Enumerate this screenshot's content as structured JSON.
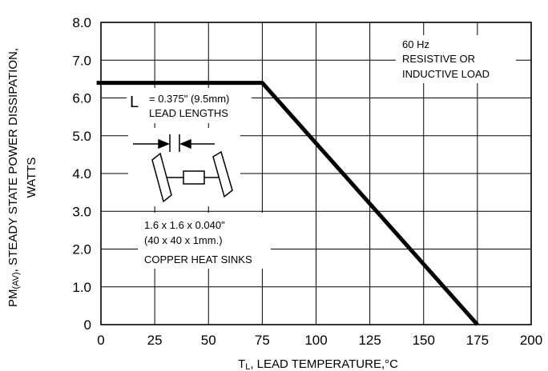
{
  "chart_data": {
    "type": "line",
    "title": "",
    "xlabel": {
      "main": "T",
      "sub": "L",
      "rest": ", LEAD TEMPERATURE,°C"
    },
    "ylabel": {
      "line1_main": "PM",
      "line1_sub": "(AV)",
      "line1_rest": ", STEADY STATE POWER DISSIPATION,",
      "line2": "WATTS"
    },
    "xlim": [
      0,
      200
    ],
    "ylim": [
      0,
      8
    ],
    "grid": true,
    "x_ticks": [
      {
        "v": 0,
        "label": "0"
      },
      {
        "v": 25,
        "label": "25"
      },
      {
        "v": 50,
        "label": "50"
      },
      {
        "v": 75,
        "label": "75"
      },
      {
        "v": 100,
        "label": "100"
      },
      {
        "v": 125,
        "label": "125"
      },
      {
        "v": 150,
        "label": "150"
      },
      {
        "v": 175,
        "label": "175"
      },
      {
        "v": 200,
        "label": "200"
      }
    ],
    "y_ticks": [
      {
        "v": 0,
        "label": "0"
      },
      {
        "v": 1,
        "label": "1.0"
      },
      {
        "v": 2,
        "label": "2.0"
      },
      {
        "v": 3,
        "label": "3.0"
      },
      {
        "v": 4,
        "label": "4.0"
      },
      {
        "v": 5,
        "label": "5.0"
      },
      {
        "v": 6,
        "label": "6.0"
      },
      {
        "v": 7,
        "label": "7.0"
      },
      {
        "v": 8,
        "label": "8.0"
      }
    ],
    "series": [
      {
        "x": [
          -2,
          75,
          175
        ],
        "y": [
          6.4,
          6.4,
          0
        ],
        "color": "#000000"
      }
    ],
    "annotations": {
      "freq": "60 Hz",
      "load_line1": "RESISTIVE OR",
      "load_line2": "INDUCTIVE LOAD",
      "lead_letter": "L",
      "lead_line1": "= 0.375\" (9.5mm)",
      "lead_line2": "LEAD LENGTHS",
      "sink_line1": "1.6 x 1.6 x 0.040\"",
      "sink_line2": "(40 x 40 x 1mm.)",
      "sink_line3": "COPPER HEAT SINKS"
    }
  }
}
